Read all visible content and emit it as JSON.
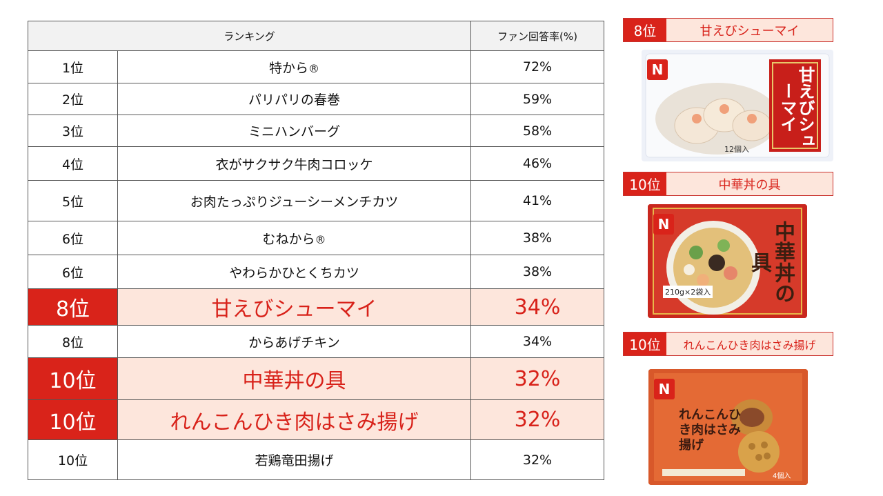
{
  "table": {
    "header_rank": "ランキング",
    "header_rate": "ファン回答率(%)",
    "rows": [
      {
        "rank": "1位",
        "name": "特から",
        "mark": "®",
        "rate": "72%"
      },
      {
        "rank": "2位",
        "name": "パリパリの春巻",
        "rate": "59%"
      },
      {
        "rank": "3位",
        "name": "ミニハンバーグ",
        "rate": "58%"
      },
      {
        "rank": "4位",
        "name": "衣がサクサク牛肉コロッケ",
        "rate": "46%"
      },
      {
        "rank": "5位",
        "name": "お肉たっぷりジューシーメンチカツ",
        "rate": "41%"
      },
      {
        "rank": "6位",
        "name": "むねから",
        "mark": "®",
        "rate": "38%"
      },
      {
        "rank": "6位",
        "name": "やわらかひとくちカツ",
        "rate": "38%"
      },
      {
        "rank": "8位",
        "name": "甘えびシューマイ",
        "rate": "34%"
      },
      {
        "rank": "8位",
        "name": "からあげチキン",
        "rate": "34%"
      },
      {
        "rank": "10位",
        "name": "中華丼の具",
        "rate": "32%"
      },
      {
        "rank": "10位",
        "name": "れんこんひき肉はさみ揚げ",
        "rate": "32%"
      },
      {
        "rank": "10位",
        "name": "若鶏竜田揚げ",
        "rate": "32%"
      }
    ]
  },
  "side": {
    "items": [
      {
        "rank": "8位",
        "name": "甘えびシューマイ"
      },
      {
        "rank": "10位",
        "name": "中華丼の具"
      },
      {
        "rank": "10位",
        "name": "れんこんひき肉はさみ揚げ"
      }
    ]
  },
  "packages": {
    "shumai": {
      "title": "甘えびシューマイ",
      "badge": "12個入"
    },
    "chukadon": {
      "title": "中華丼の具",
      "badge": "210g×2袋入"
    },
    "renkon": {
      "title": "れんこんひき肉はさみ揚げ",
      "badge": "4個入"
    }
  },
  "colors": {
    "accent": "#d9231a",
    "highlight_bg": "#fde6dc"
  }
}
